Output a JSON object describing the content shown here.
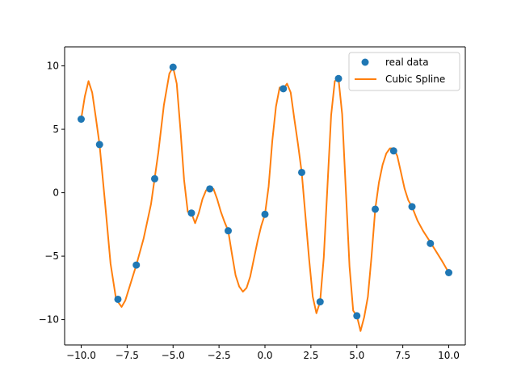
{
  "colors": {
    "points": "#1f77b4",
    "spline": "#ff7f0e",
    "axis": "#000000",
    "background": "#ffffff"
  },
  "chart_data": {
    "type": "line",
    "title": "",
    "xlabel": "",
    "ylabel": "",
    "xlim": [
      -10.9,
      10.9
    ],
    "ylim": [
      -12.0,
      11.5
    ],
    "grid": false,
    "legend_placement": "top-right",
    "x_ticks": [
      -10.0,
      -7.5,
      -5.0,
      -2.5,
      0.0,
      2.5,
      5.0,
      7.5,
      10.0
    ],
    "x_tick_labels": [
      "−10.0",
      "−7.5",
      "−5.0",
      "−2.5",
      "0.0",
      "2.5",
      "5.0",
      "7.5",
      "10.0"
    ],
    "y_ticks": [
      -10,
      -5,
      0,
      5,
      10
    ],
    "y_tick_labels": [
      "−10",
      "−5",
      "0",
      "5",
      "10"
    ],
    "series": [
      {
        "name": "real data",
        "kind": "scatter",
        "x": [
          -10,
          -9,
          -8,
          -7,
          -6,
          -5,
          -4,
          -3,
          -2,
          0,
          1,
          2,
          3,
          4,
          5,
          6,
          7,
          8,
          9,
          10
        ],
        "y": [
          5.8,
          3.8,
          -8.4,
          -5.7,
          1.1,
          9.9,
          -1.6,
          0.3,
          -3.0,
          -1.7,
          8.2,
          1.6,
          -8.6,
          9.0,
          -9.7,
          -1.3,
          3.3,
          -1.1,
          -4.0,
          -6.3
        ]
      },
      {
        "name": "Cubic Spline",
        "kind": "line",
        "x": [
          -10.0,
          -9.8,
          -9.6,
          -9.4,
          -9.2,
          -9.0,
          -8.7,
          -8.4,
          -8.1,
          -7.8,
          -7.6,
          -7.3,
          -7.0,
          -6.6,
          -6.2,
          -5.8,
          -5.5,
          -5.2,
          -5.0,
          -4.8,
          -4.6,
          -4.4,
          -4.2,
          -4.0,
          -3.8,
          -3.6,
          -3.4,
          -3.2,
          -3.0,
          -2.8,
          -2.6,
          -2.4,
          -2.2,
          -2.0,
          -1.8,
          -1.6,
          -1.4,
          -1.2,
          -1.0,
          -0.8,
          -0.6,
          -0.4,
          -0.2,
          0.0,
          0.2,
          0.4,
          0.6,
          0.8,
          1.0,
          1.2,
          1.4,
          1.6,
          1.8,
          2.0,
          2.2,
          2.4,
          2.6,
          2.8,
          3.0,
          3.2,
          3.4,
          3.6,
          3.8,
          4.0,
          4.2,
          4.4,
          4.6,
          4.8,
          5.0,
          5.2,
          5.4,
          5.6,
          5.8,
          6.0,
          6.2,
          6.4,
          6.6,
          6.8,
          7.0,
          7.2,
          7.4,
          7.6,
          7.8,
          8.0,
          8.3,
          8.6,
          9.0,
          9.3,
          9.6,
          10.0
        ],
        "y": [
          5.8,
          7.6,
          8.8,
          7.9,
          5.9,
          3.8,
          -0.8,
          -5.6,
          -8.4,
          -9.0,
          -8.5,
          -7.1,
          -5.7,
          -3.6,
          -0.9,
          3.2,
          6.9,
          9.4,
          9.9,
          8.6,
          5.0,
          1.0,
          -1.5,
          -1.6,
          -2.4,
          -1.6,
          -0.5,
          0.2,
          0.3,
          0.3,
          -0.5,
          -1.5,
          -2.3,
          -3.0,
          -4.8,
          -6.5,
          -7.4,
          -7.8,
          -7.5,
          -6.6,
          -5.2,
          -3.8,
          -2.6,
          -1.7,
          0.5,
          4.1,
          6.8,
          8.3,
          8.2,
          8.6,
          7.9,
          5.8,
          3.8,
          1.6,
          -1.8,
          -5.2,
          -8.2,
          -9.5,
          -8.6,
          -5.1,
          0.5,
          6.1,
          8.8,
          9.0,
          6.2,
          0.2,
          -5.8,
          -9.3,
          -9.7,
          -10.9,
          -9.8,
          -8.2,
          -5.0,
          -1.3,
          0.8,
          2.2,
          3.1,
          3.5,
          3.5,
          2.9,
          1.6,
          0.3,
          -0.6,
          -1.1,
          -2.2,
          -3.0,
          -3.9,
          -4.6,
          -5.3,
          -6.3
        ]
      }
    ]
  }
}
